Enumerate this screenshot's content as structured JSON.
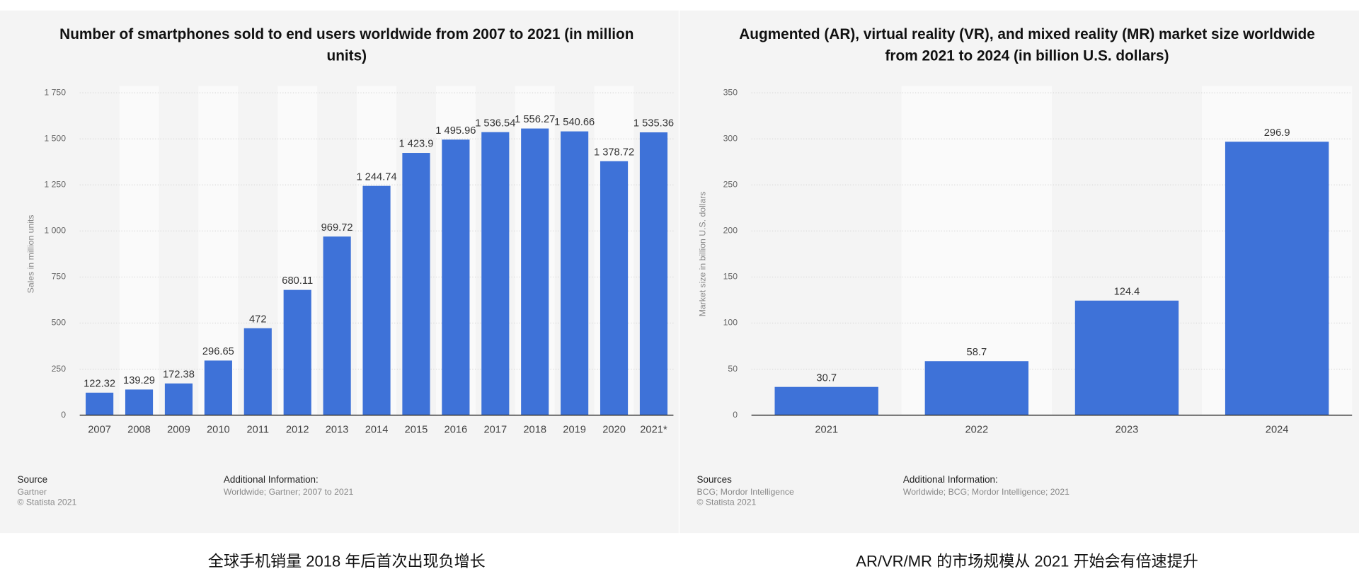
{
  "chart_data": [
    {
      "type": "bar",
      "title": "Number of smartphones sold to end users worldwide from 2007 to 2021 (in million units)",
      "y_axis_label": "Sales in million units",
      "categories": [
        "2007",
        "2008",
        "2009",
        "2010",
        "2011",
        "2012",
        "2013",
        "2014",
        "2015",
        "2016",
        "2017",
        "2018",
        "2019",
        "2020",
        "2021*"
      ],
      "values": [
        122.32,
        139.29,
        172.38,
        296.65,
        472,
        680.11,
        969.72,
        1244.74,
        1423.9,
        1495.96,
        1536.54,
        1556.27,
        1540.66,
        1378.72,
        1535.36
      ],
      "value_labels": [
        "122.32",
        "139.29",
        "172.38",
        "296.65",
        "472",
        "680.11",
        "969.72",
        "1 244.74",
        "1 423.9",
        "1 495.96",
        "1 536.54",
        "1 556.27",
        "1 540.66",
        "1 378.72",
        "1 535.36"
      ],
      "color": "#3e72d8",
      "ylim": [
        0,
        1750
      ],
      "yticks": [
        0,
        250,
        500,
        750,
        {
          "value": 1000,
          "label": "1 000"
        },
        {
          "value": 1250,
          "label": "1 250"
        },
        {
          "value": 1500,
          "label": "1 500"
        },
        {
          "value": 1750,
          "label": "1 750"
        }
      ],
      "grid": true,
      "source_heading": "Source",
      "source": "Gartner",
      "copyright": "© Statista 2021",
      "info_heading": "Additional Information:",
      "info": "Worldwide; Gartner; 2007 to 2021",
      "caption": "全球手机销量 2018 年后首次出现负增长"
    },
    {
      "type": "bar",
      "title": "Augmented (AR), virtual reality (VR), and mixed reality (MR) market size worldwide from 2021 to 2024 (in billion U.S. dollars)",
      "y_axis_label": "Market size in billion U.S. dollars",
      "categories": [
        "2021",
        "2022",
        "2023",
        "2024"
      ],
      "values": [
        30.7,
        58.7,
        124.4,
        296.9
      ],
      "color": "#3e72d8",
      "ylim": [
        0,
        350
      ],
      "yticks": [
        0,
        50,
        100,
        150,
        200,
        250,
        300,
        350
      ],
      "grid": true,
      "source_heading": "Sources",
      "source": "BCG; Mordor Intelligence",
      "copyright": "© Statista 2021",
      "info_heading": "Additional Information:",
      "info": "Worldwide; BCG; Mordor Intelligence; 2021",
      "caption": "AR/VR/MR 的市场规模从 2021 开始会有倍速提升"
    }
  ]
}
